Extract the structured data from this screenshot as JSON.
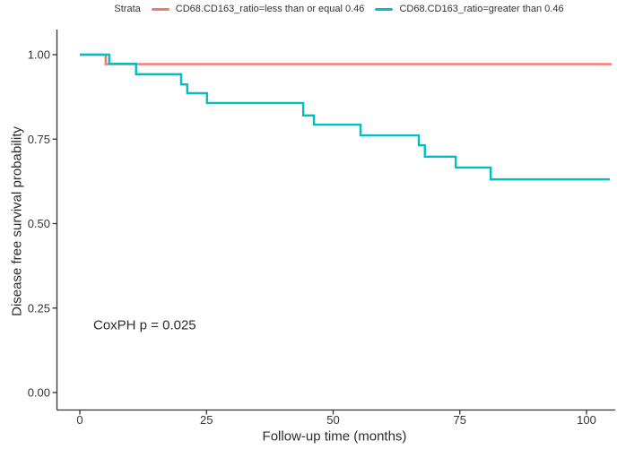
{
  "figure": {
    "ylabel": "Disease free survival probability",
    "xlabel": "Follow-up time (months)",
    "annotation_text": "CoxPH p = 0.025"
  },
  "legend": {
    "title": "Strata",
    "items": [
      {
        "label": "CD68.CD163_ratio=less than or equal 0.46",
        "color": "#F8766D"
      },
      {
        "label": "CD68.CD163_ratio=greater than 0.46",
        "color": "#00BFC4"
      }
    ]
  },
  "chart_data": {
    "type": "line",
    "subtype": "kaplan-meier-step-curves",
    "title": "",
    "xlabel": "Follow-up time (months)",
    "ylabel": "Disease free survival probability",
    "xticks": [
      "0",
      "25",
      "50",
      "75",
      "100"
    ],
    "yticks": [
      "0.00",
      "0.25",
      "0.50",
      "0.75",
      "1.00"
    ],
    "xlim": [
      -4.5,
      106
    ],
    "ylim": [
      0,
      1.0
    ],
    "grid": false,
    "legend_position": "top",
    "axis_color": "#333333",
    "annotation": {
      "text": "CoxPH p = 0.025",
      "x_months": 2.8,
      "y_prob": 0.2
    },
    "series": [
      {
        "name": "CD68.CD163_ratio=less than or equal 0.46",
        "color": "#F8766D",
        "steps": [
          [
            0,
            1.0
          ],
          [
            5.1,
            0.972
          ]
        ],
        "end_time": 105.0
      },
      {
        "name": "CD68.CD163_ratio=greater than 0.46",
        "color": "#00BFC4",
        "steps": [
          [
            0,
            1.0
          ],
          [
            5.8,
            0.973
          ],
          [
            11.1,
            0.942
          ],
          [
            20.0,
            0.912
          ],
          [
            21.2,
            0.886
          ],
          [
            25.1,
            0.857
          ],
          [
            44.1,
            0.82
          ],
          [
            46.2,
            0.793
          ],
          [
            55.4,
            0.761
          ],
          [
            66.9,
            0.732
          ],
          [
            68.1,
            0.698
          ],
          [
            74.2,
            0.666
          ],
          [
            81.1,
            0.631
          ]
        ],
        "end_time": 104.6
      }
    ]
  }
}
